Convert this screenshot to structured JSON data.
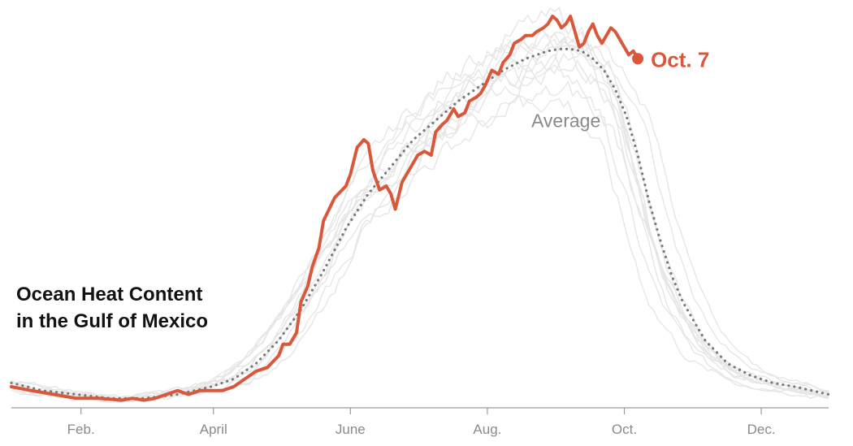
{
  "title": {
    "line1": "Ocean Heat Content",
    "line2": "in the Gulf of Mexico"
  },
  "colors": {
    "current": "#d9583b",
    "average": "#7a7a7a",
    "history": "#e6e6e6",
    "axis": "#9a9a9a"
  },
  "chart_data": {
    "type": "line",
    "title": "Ocean Heat Content in the Gulf of Mexico",
    "xlabel": "",
    "ylabel": "",
    "xlim": [
      1,
      365
    ],
    "ylim": [
      0,
      100
    ],
    "x_ticks": [
      {
        "day": 32,
        "label": "Feb."
      },
      {
        "day": 91,
        "label": "April"
      },
      {
        "day": 152,
        "label": "June"
      },
      {
        "day": 213,
        "label": "Aug."
      },
      {
        "day": 274,
        "label": "Oct."
      },
      {
        "day": 335,
        "label": "Dec."
      }
    ],
    "grid": false,
    "legend": "none",
    "series": [
      {
        "name": "Average",
        "label": "Average",
        "style": "dotted",
        "x": [
          1,
          15,
          30,
          45,
          60,
          75,
          90,
          100,
          110,
          120,
          130,
          140,
          150,
          160,
          170,
          180,
          190,
          200,
          210,
          220,
          230,
          240,
          245,
          250,
          255,
          260,
          265,
          270,
          275,
          280,
          285,
          290,
          295,
          300,
          310,
          320,
          330,
          340,
          350,
          365
        ],
        "y": [
          5,
          3,
          2,
          1,
          1,
          2,
          4,
          6,
          10,
          16,
          24,
          34,
          45,
          54,
          61,
          68,
          73,
          78,
          82,
          86,
          89,
          91,
          91.5,
          91.5,
          91,
          89,
          86,
          81,
          74,
          64,
          52,
          42,
          33,
          26,
          16,
          10,
          7,
          5,
          4,
          2
        ]
      },
      {
        "name": "Current year",
        "label": "Oct. 7",
        "style": "solid",
        "x": [
          1,
          10,
          20,
          30,
          40,
          50,
          55,
          60,
          65,
          70,
          75,
          80,
          85,
          90,
          95,
          100,
          105,
          110,
          115,
          120,
          122,
          125,
          128,
          130,
          133,
          135,
          138,
          140,
          145,
          150,
          152,
          155,
          158,
          160,
          162,
          165,
          168,
          170,
          172,
          175,
          178,
          180,
          182,
          185,
          188,
          190,
          193,
          195,
          198,
          200,
          203,
          205,
          208,
          210,
          212,
          215,
          218,
          220,
          223,
          225,
          228,
          230,
          233,
          235,
          238,
          240,
          242,
          244,
          246,
          248,
          250,
          252,
          254,
          256,
          258,
          260,
          262,
          264,
          266,
          268,
          270,
          272,
          274,
          276,
          278,
          280
        ],
        "y": [
          4,
          3,
          2,
          1,
          1,
          0.5,
          1,
          0.5,
          1,
          2,
          3,
          2,
          3,
          3,
          3,
          4,
          6,
          8,
          9,
          12,
          15,
          15,
          18,
          26,
          30,
          35,
          40,
          47,
          53,
          56,
          59,
          66,
          68,
          67,
          60,
          55,
          56,
          54,
          50,
          57,
          60,
          62,
          64,
          65,
          64,
          70,
          72,
          73,
          76,
          74,
          75,
          78,
          79,
          80,
          82,
          86,
          85,
          88,
          90,
          93,
          94,
          95,
          95,
          96,
          97,
          98,
          100,
          99,
          97,
          98,
          100,
          96,
          92,
          93,
          96,
          98,
          95,
          93,
          95,
          97,
          96,
          94,
          92,
          90,
          91,
          89
        ]
      }
    ],
    "annotations": [
      {
        "text": "Average",
        "target_series": "Average"
      },
      {
        "text": "Oct. 7",
        "target_series": "Current year"
      }
    ]
  }
}
